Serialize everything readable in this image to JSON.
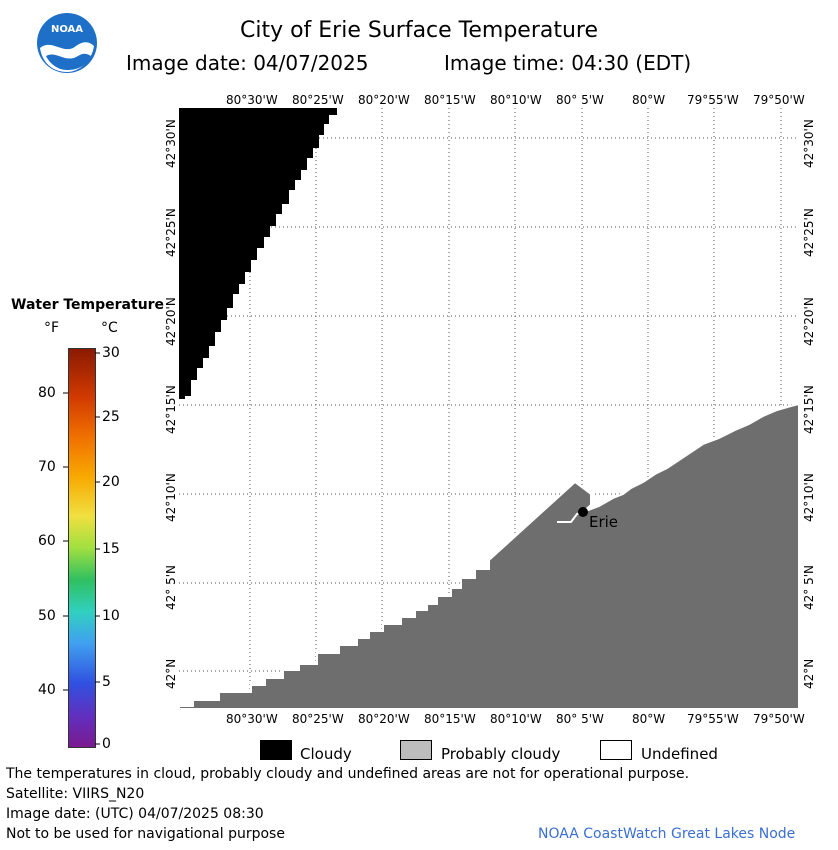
{
  "header": {
    "title": "City of Erie Surface Temperature",
    "image_date": "Image date: 04/07/2025",
    "image_time": "Image time: 04:30 (EDT)"
  },
  "logo": {
    "text": "NOAA"
  },
  "map": {
    "lon_labels": [
      "80°30'W",
      "80°25'W",
      "80°20'W",
      "80°15'W",
      "80°10'W",
      "80° 5'W",
      "80°W",
      "79°55'W",
      "79°50'W"
    ],
    "lat_labels": [
      "42°30'N",
      "42°25'N",
      "42°20'N",
      "42°15'N",
      "42°10'N",
      "42° 5'N",
      "42°N"
    ],
    "city_label": "Erie",
    "colors": {
      "cloudy": "#000000",
      "land": "#6e6e6e",
      "probably_cloudy": "#bdbdbd",
      "undefined": "#ffffff"
    }
  },
  "colorbar": {
    "title": "Water Temperature",
    "unit_f": "°F",
    "unit_c": "°C",
    "f_ticks": [
      "80",
      "70",
      "60",
      "50",
      "40"
    ],
    "c_ticks": [
      "30",
      "25",
      "20",
      "15",
      "10",
      "5",
      "0"
    ]
  },
  "legend": {
    "cloudy": "Cloudy",
    "probably_cloudy": "Probably cloudy",
    "undefined": "Undefined"
  },
  "footer": {
    "disclaimer": "The temperatures in cloud, probably cloudy and undefined areas are not for operational purpose.",
    "satellite": "Satellite: VIIRS_N20",
    "image_date_utc": "Image date: (UTC) 04/07/2025  08:30",
    "nav_warning": "Not to be used for navigational purpose",
    "credit": "NOAA CoastWatch Great Lakes Node"
  }
}
